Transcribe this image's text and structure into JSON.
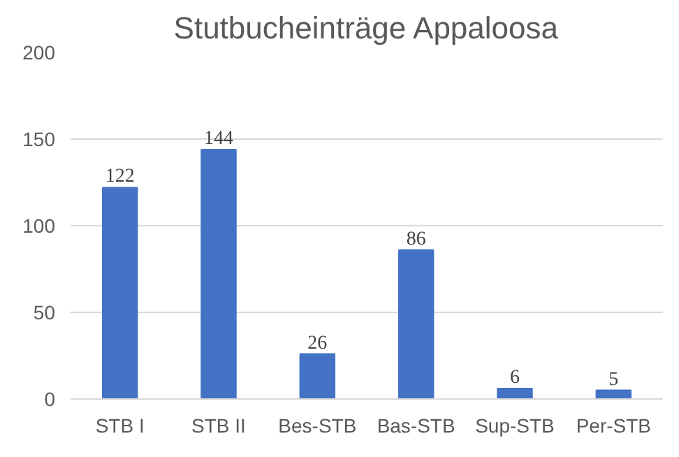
{
  "chart_data": {
    "type": "bar",
    "title": "Stutbucheinträge Appaloosa",
    "categories": [
      "STB I",
      "STB II",
      "Bes-STB",
      "Bas-STB",
      "Sup-STB",
      "Per-STB"
    ],
    "values": [
      122,
      144,
      26,
      86,
      6,
      5
    ],
    "color": "#4472c4",
    "ylim": [
      0,
      200
    ],
    "yticks": [
      0,
      50,
      100,
      150,
      200
    ],
    "grid": "y",
    "data_labels": true
  }
}
